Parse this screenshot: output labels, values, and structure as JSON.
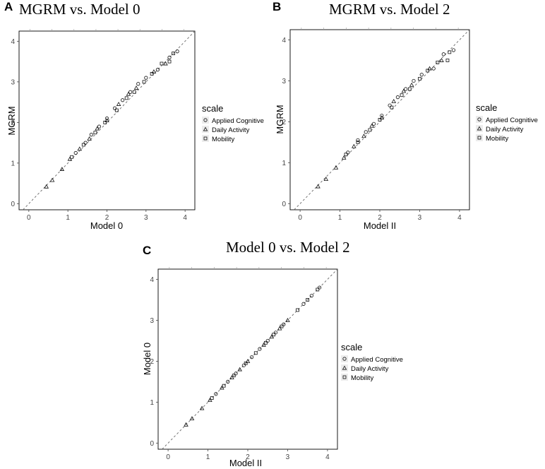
{
  "chart_data": [
    {
      "type": "scatter",
      "letter": "A",
      "title": "MGRM vs. Model 0",
      "xlabel": "Model 0",
      "ylabel": "MGRM",
      "xlim": [
        -0.25,
        4.25
      ],
      "ylim": [
        -0.15,
        4.25
      ],
      "xticks": [
        0,
        1,
        2,
        3,
        4
      ],
      "yticks": [
        0,
        1,
        2,
        3,
        4
      ],
      "reference_line": "y = x (dashed)",
      "grid": false,
      "legend": {
        "title": "scale",
        "position": "right",
        "entries": [
          "Applied Cognitive",
          "Daily Activity",
          "Mobility"
        ],
        "markers": [
          "circle",
          "triangle",
          "square"
        ]
      },
      "series": [
        {
          "name": "Applied Cognitive",
          "marker": "circle",
          "points": [
            [
              1.2,
              1.25
            ],
            [
              1.45,
              1.5
            ],
            [
              1.6,
              1.7
            ],
            [
              1.8,
              1.9
            ],
            [
              2.0,
              2.1
            ],
            [
              2.2,
              2.35
            ],
            [
              2.4,
              2.55
            ],
            [
              2.6,
              2.75
            ],
            [
              2.8,
              2.95
            ],
            [
              3.0,
              3.1
            ],
            [
              3.3,
              3.3
            ],
            [
              3.6,
              3.6
            ],
            [
              3.8,
              3.75
            ]
          ]
        },
        {
          "name": "Daily Activity",
          "marker": "triangle",
          "points": [
            [
              0.45,
              0.42
            ],
            [
              0.6,
              0.58
            ],
            [
              0.85,
              0.85
            ],
            [
              1.05,
              1.1
            ],
            [
              1.3,
              1.35
            ],
            [
              1.55,
              1.6
            ],
            [
              1.75,
              1.85
            ],
            [
              2.0,
              2.05
            ],
            [
              2.3,
              2.45
            ],
            [
              2.55,
              2.7
            ],
            [
              2.75,
              2.85
            ],
            [
              3.2,
              3.25
            ],
            [
              3.5,
              3.45
            ]
          ]
        },
        {
          "name": "Mobility",
          "marker": "square",
          "points": [
            [
              1.1,
              1.15
            ],
            [
              1.4,
              1.45
            ],
            [
              1.7,
              1.75
            ],
            [
              1.95,
              2.0
            ],
            [
              2.25,
              2.3
            ],
            [
              2.5,
              2.6
            ],
            [
              2.7,
              2.75
            ],
            [
              2.95,
              3.0
            ],
            [
              3.15,
              3.2
            ],
            [
              3.4,
              3.45
            ],
            [
              3.6,
              3.5
            ],
            [
              3.7,
              3.7
            ]
          ]
        }
      ]
    },
    {
      "type": "scatter",
      "letter": "B",
      "title": "MGRM vs. Model 2",
      "xlabel": "Model II",
      "ylabel": "MGRM",
      "xlim": [
        -0.25,
        4.25
      ],
      "ylim": [
        -0.15,
        4.25
      ],
      "xticks": [
        0,
        1,
        2,
        3,
        4
      ],
      "yticks": [
        0,
        1,
        2,
        3,
        4
      ],
      "reference_line": "y = x (dashed)",
      "grid": false,
      "legend": {
        "title": "scale",
        "position": "right",
        "entries": [
          "Applied Cognitive",
          "Daily Activity",
          "Mobility"
        ],
        "markers": [
          "circle",
          "triangle",
          "square"
        ]
      },
      "series": [
        {
          "name": "Applied Cognitive",
          "marker": "circle",
          "points": [
            [
              1.2,
              1.25
            ],
            [
              1.45,
              1.55
            ],
            [
              1.65,
              1.75
            ],
            [
              1.85,
              1.95
            ],
            [
              2.05,
              2.15
            ],
            [
              2.25,
              2.4
            ],
            [
              2.45,
              2.6
            ],
            [
              2.65,
              2.8
            ],
            [
              2.85,
              3.0
            ],
            [
              3.05,
              3.15
            ],
            [
              3.35,
              3.3
            ],
            [
              3.6,
              3.65
            ],
            [
              3.85,
              3.75
            ]
          ]
        },
        {
          "name": "Daily Activity",
          "marker": "triangle",
          "points": [
            [
              0.45,
              0.42
            ],
            [
              0.65,
              0.6
            ],
            [
              0.9,
              0.88
            ],
            [
              1.1,
              1.12
            ],
            [
              1.35,
              1.4
            ],
            [
              1.6,
              1.65
            ],
            [
              1.8,
              1.9
            ],
            [
              2.05,
              2.1
            ],
            [
              2.35,
              2.5
            ],
            [
              2.6,
              2.75
            ],
            [
              2.8,
              2.9
            ],
            [
              3.25,
              3.3
            ],
            [
              3.55,
              3.5
            ]
          ]
        },
        {
          "name": "Mobility",
          "marker": "square",
          "points": [
            [
              1.15,
              1.2
            ],
            [
              1.45,
              1.5
            ],
            [
              1.75,
              1.8
            ],
            [
              2.0,
              2.05
            ],
            [
              2.3,
              2.35
            ],
            [
              2.55,
              2.65
            ],
            [
              2.75,
              2.8
            ],
            [
              3.0,
              3.05
            ],
            [
              3.2,
              3.25
            ],
            [
              3.45,
              3.45
            ],
            [
              3.7,
              3.5
            ],
            [
              3.75,
              3.7
            ]
          ]
        }
      ]
    },
    {
      "type": "scatter",
      "letter": "C",
      "title": "Model 0 vs. Model 2",
      "xlabel": "Model II",
      "ylabel": "Model 0",
      "xlim": [
        -0.25,
        4.25
      ],
      "ylim": [
        -0.15,
        4.25
      ],
      "xticks": [
        0,
        1,
        2,
        3,
        4
      ],
      "yticks": [
        0,
        1,
        2,
        3,
        4
      ],
      "reference_line": "y = x (dashed)",
      "grid": false,
      "legend": {
        "title": "scale",
        "position": "right",
        "entries": [
          "Applied Cognitive",
          "Daily Activity",
          "Mobility"
        ],
        "markers": [
          "circle",
          "triangle",
          "square"
        ]
      },
      "series": [
        {
          "name": "Applied Cognitive",
          "marker": "circle",
          "points": [
            [
              1.2,
              1.2
            ],
            [
              1.5,
              1.5
            ],
            [
              1.7,
              1.7
            ],
            [
              1.9,
              1.9
            ],
            [
              2.1,
              2.1
            ],
            [
              2.3,
              2.3
            ],
            [
              2.5,
              2.5
            ],
            [
              2.7,
              2.7
            ],
            [
              2.9,
              2.9
            ],
            [
              3.4,
              3.4
            ],
            [
              3.6,
              3.6
            ],
            [
              3.8,
              3.8
            ]
          ]
        },
        {
          "name": "Daily Activity",
          "marker": "triangle",
          "points": [
            [
              0.45,
              0.45
            ],
            [
              0.6,
              0.6
            ],
            [
              0.85,
              0.85
            ],
            [
              1.05,
              1.05
            ],
            [
              1.35,
              1.35
            ],
            [
              1.6,
              1.6
            ],
            [
              1.8,
              1.8
            ],
            [
              2.0,
              2.0
            ],
            [
              2.4,
              2.4
            ],
            [
              2.6,
              2.6
            ],
            [
              2.8,
              2.8
            ],
            [
              3.0,
              3.0
            ]
          ]
        },
        {
          "name": "Mobility",
          "marker": "square",
          "points": [
            [
              1.1,
              1.1
            ],
            [
              1.4,
              1.4
            ],
            [
              1.65,
              1.65
            ],
            [
              1.95,
              1.95
            ],
            [
              2.2,
              2.2
            ],
            [
              2.45,
              2.45
            ],
            [
              2.65,
              2.65
            ],
            [
              2.85,
              2.85
            ],
            [
              3.25,
              3.25
            ],
            [
              3.5,
              3.5
            ],
            [
              3.75,
              3.75
            ]
          ]
        }
      ]
    }
  ]
}
